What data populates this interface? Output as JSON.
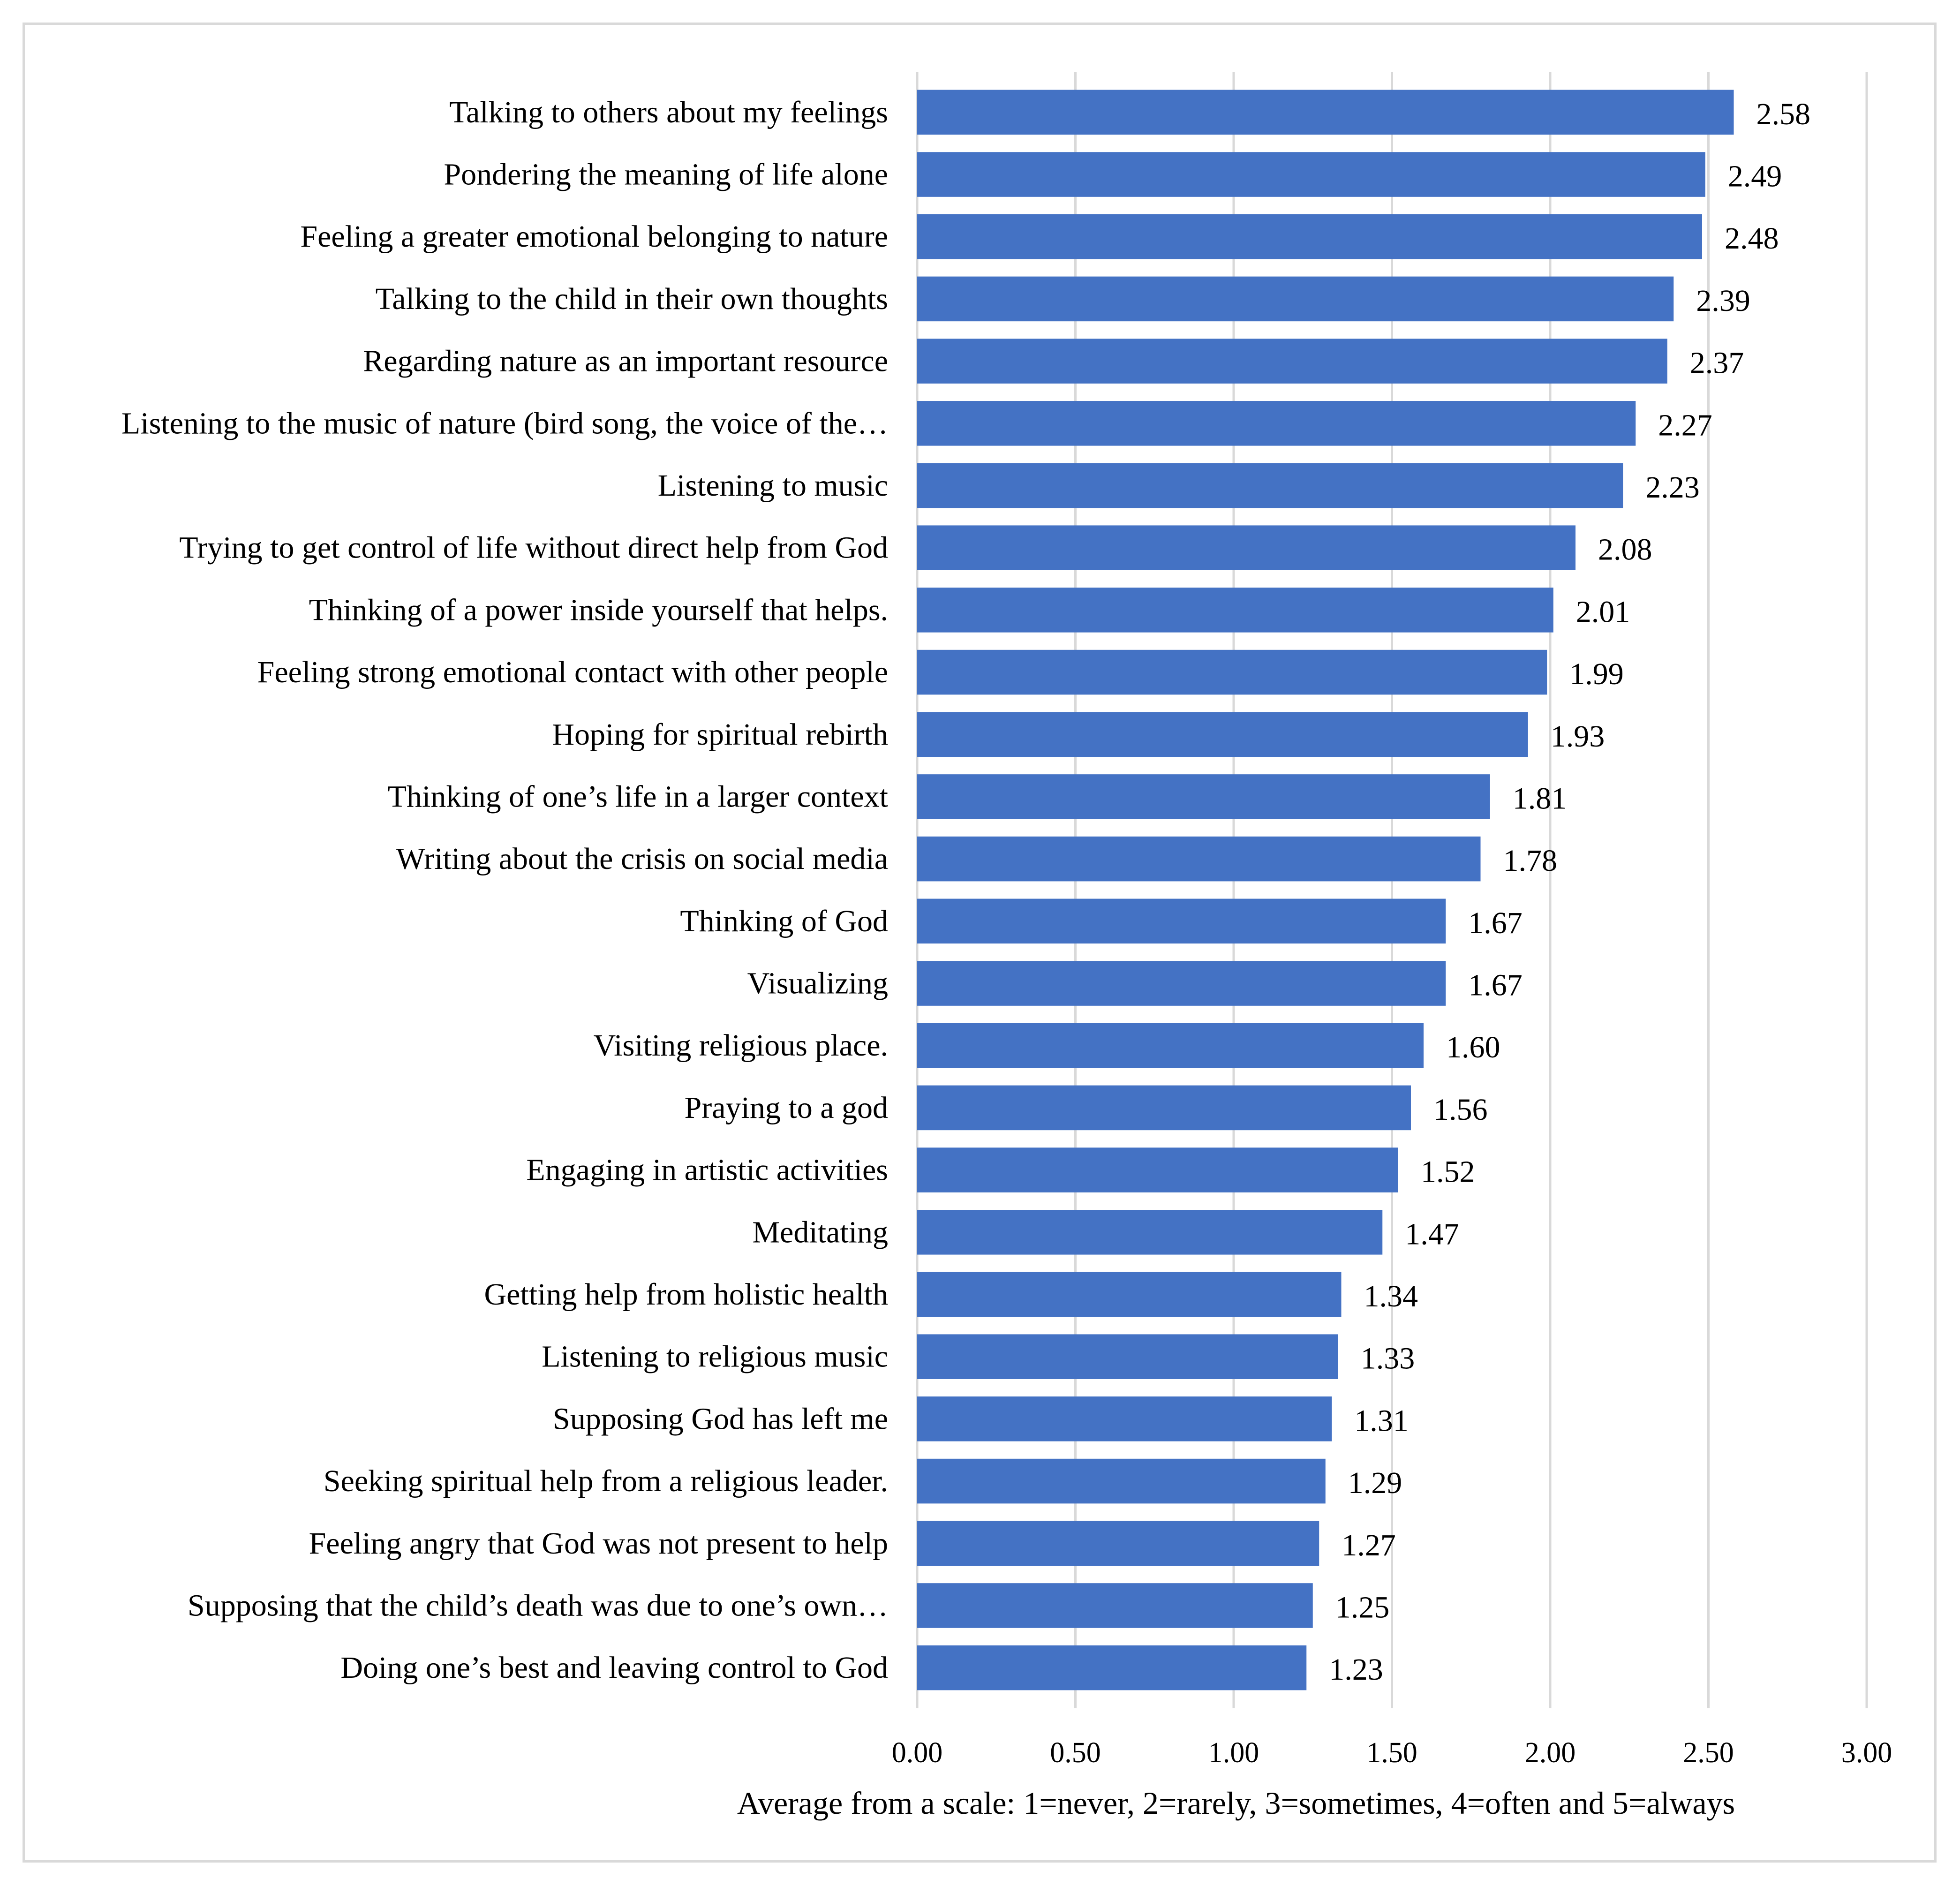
{
  "chart_data": {
    "type": "bar",
    "orientation": "horizontal",
    "title": "",
    "xlabel": "Average from a scale: 1=never, 2=rarely, 3=sometimes, 4=often and 5=always",
    "ylabel": "",
    "xlim": [
      0,
      3
    ],
    "xticks": [
      "0.00",
      "0.50",
      "1.00",
      "1.50",
      "2.00",
      "2.50",
      "3.00"
    ],
    "grid": true,
    "bar_color": "#4472c4",
    "categories": [
      "Talking to others about my feelings",
      "Pondering the meaning of life alone",
      "Feeling a greater emotional belonging to nature",
      "Talking to the child in their own thoughts",
      "Regarding nature as an important resource",
      "Listening to the music of nature (bird song, the voice of the…",
      "Listening to music",
      "Trying to get control of life without direct help from God",
      "Thinking of a power inside yourself that helps.",
      "Feeling strong emotional contact with other people",
      "Hoping for spiritual rebirth",
      "Thinking of one’s life in a larger context",
      "Writing about the crisis on social media",
      "Thinking of God",
      "Visualizing",
      "Visiting religious place.",
      "Praying to a god",
      "Engaging in artistic activities",
      "Meditating",
      "Getting help from holistic health",
      "Listening to religious music",
      "Supposing God has left me",
      "Seeking spiritual help from a religious leader.",
      "Feeling angry that God was not present to help",
      "Supposing that the child’s death was due to one’s own…",
      "Doing one’s best and leaving control to God"
    ],
    "values": [
      2.58,
      2.49,
      2.48,
      2.39,
      2.37,
      2.27,
      2.23,
      2.08,
      2.01,
      1.99,
      1.93,
      1.81,
      1.78,
      1.67,
      1.67,
      1.6,
      1.56,
      1.52,
      1.47,
      1.34,
      1.33,
      1.31,
      1.29,
      1.27,
      1.25,
      1.23
    ],
    "value_labels": [
      "2.58",
      "2.49",
      "2.48",
      "2.39",
      "2.37",
      "2.27",
      "2.23",
      "2.08",
      "2.01",
      "1.99",
      "1.93",
      "1.81",
      "1.78",
      "1.67",
      "1.67",
      "1.60",
      "1.56",
      "1.52",
      "1.47",
      "1.34",
      "1.33",
      "1.31",
      "1.29",
      "1.27",
      "1.25",
      "1.23"
    ]
  }
}
